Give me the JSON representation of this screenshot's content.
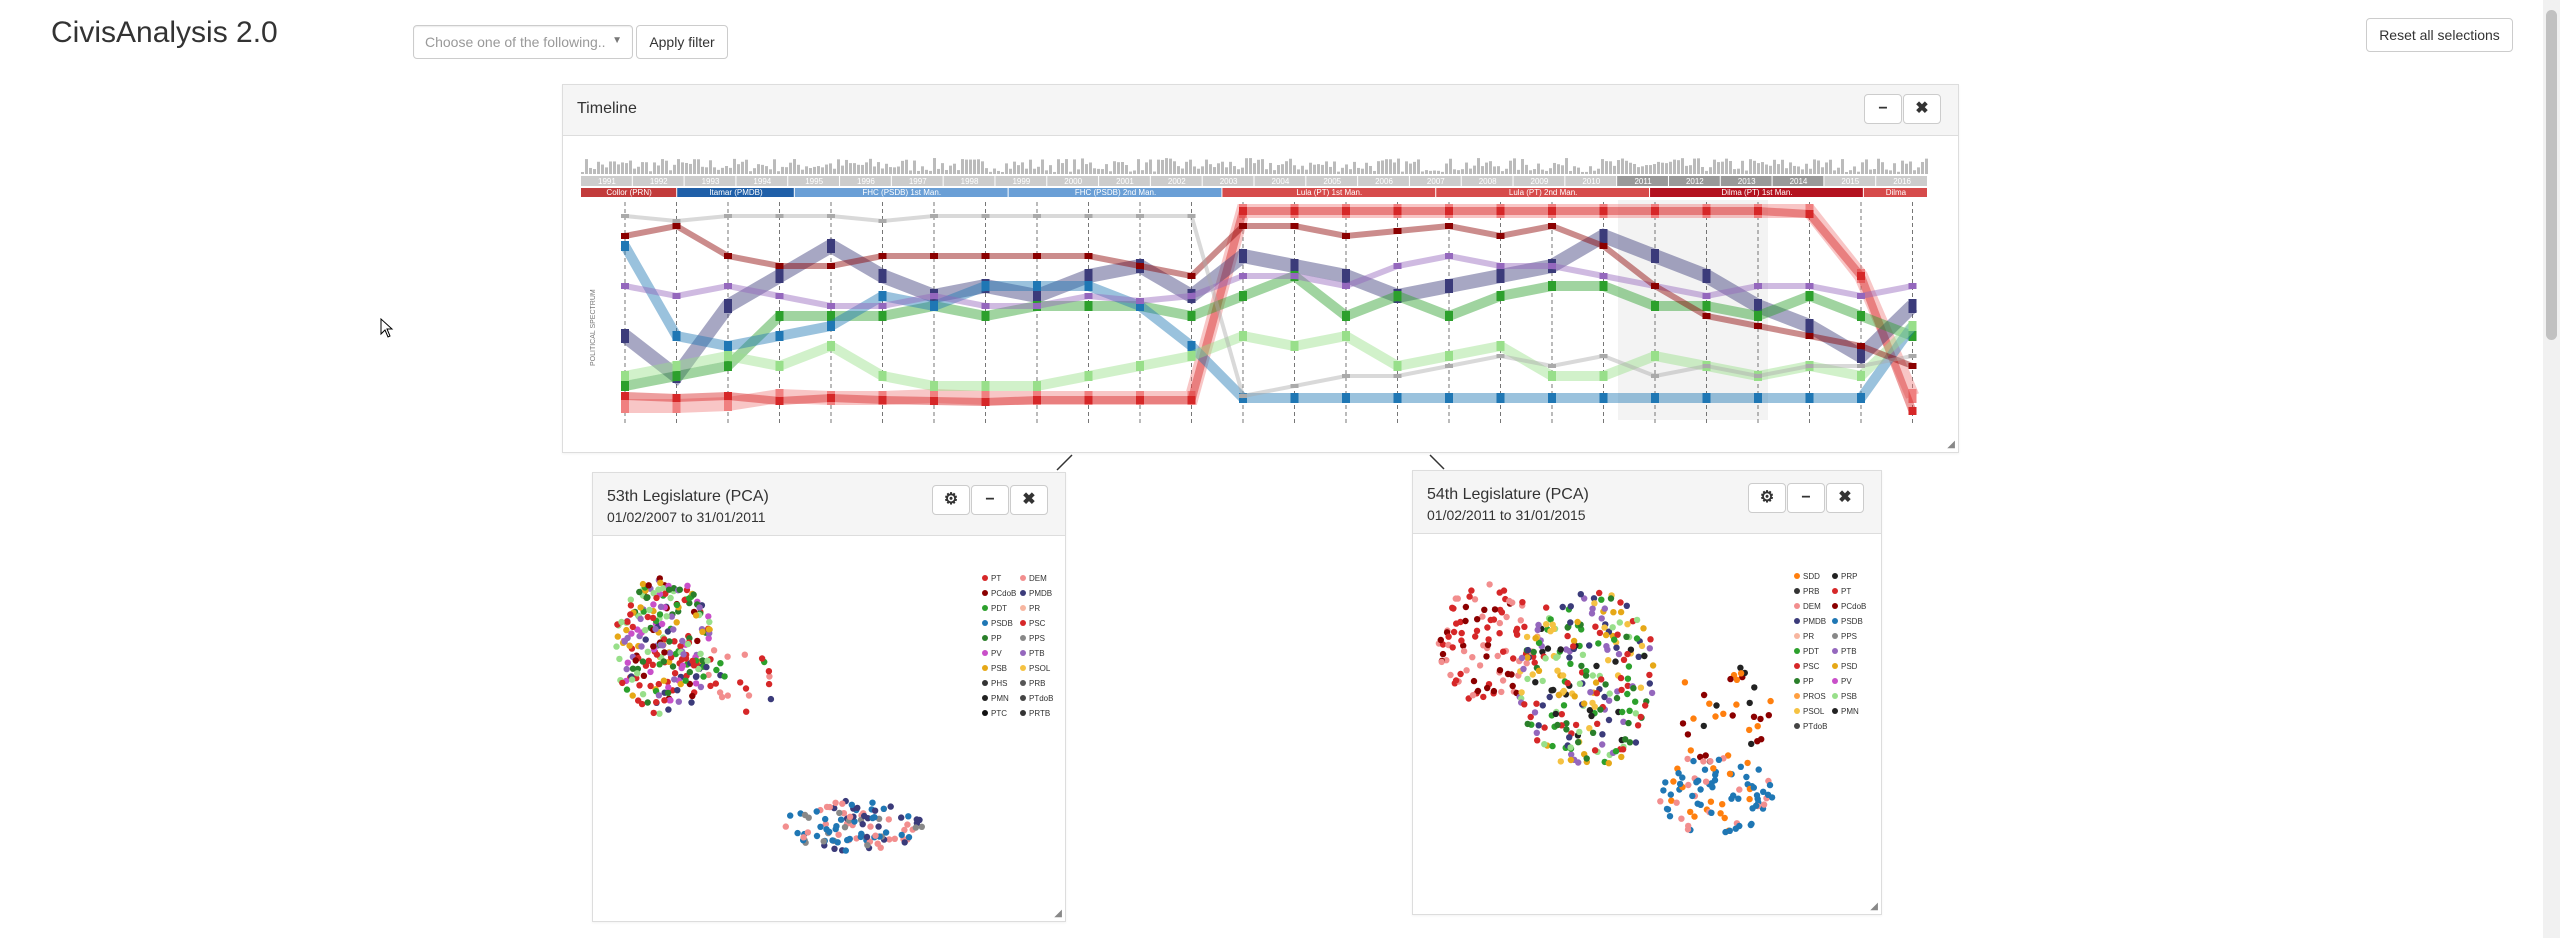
{
  "app": {
    "title": "CivisAnalysis 2.0"
  },
  "toolbar": {
    "filter_placeholder": "Choose one of the following..",
    "apply_label": "Apply filter",
    "reset_label": "Reset all selections"
  },
  "timeline": {
    "title": "Timeline",
    "years": [
      "1991",
      "1992",
      "1993",
      "1994",
      "1995",
      "1996",
      "1997",
      "1998",
      "1999",
      "2000",
      "2001",
      "2002",
      "2003",
      "2004",
      "2005",
      "2006",
      "2007",
      "2008",
      "2009",
      "2010",
      "2011",
      "2012",
      "2013",
      "2014",
      "2015",
      "2016"
    ],
    "presidents": [
      "Collor (PRN)",
      "Itamar (PMDB)",
      "FHC (PSDB) 1st Man.",
      "FHC (PSDB) 2nd Man.",
      "Lula (PT) 1st Man.",
      "Lula (PT) 2nd Man.",
      "Dilma (PT) 1st Man.",
      "Dilma"
    ],
    "axis_label": "POLITICAL SPECTRUM"
  },
  "panel53": {
    "title": "53th Legislature (PCA)",
    "dates": "01/02/2007 to 31/01/2011",
    "legend": [
      {
        "name": "PT",
        "color": "#d62728"
      },
      {
        "name": "DEM",
        "color": "#f28e8e"
      },
      {
        "name": "PCdoB",
        "color": "#8b0000"
      },
      {
        "name": "PMDB",
        "color": "#3b3b7a"
      },
      {
        "name": "PDT",
        "color": "#2ca02c"
      },
      {
        "name": "PR",
        "color": "#f7b6a0"
      },
      {
        "name": "PSDB",
        "color": "#1f77b4"
      },
      {
        "name": "PSC",
        "color": "#d62728"
      },
      {
        "name": "PP",
        "color": "#2a7f2a"
      },
      {
        "name": "PPS",
        "color": "#888888"
      },
      {
        "name": "PV",
        "color": "#c94fc9"
      },
      {
        "name": "PTB",
        "color": "#9467bd"
      },
      {
        "name": "PSB",
        "color": "#e6a817"
      },
      {
        "name": "PSOL",
        "color": "#f5c242"
      },
      {
        "name": "PHS",
        "color": "#333333"
      },
      {
        "name": "PRB",
        "color": "#555555"
      },
      {
        "name": "PMN",
        "color": "#222222"
      },
      {
        "name": "PTdoB",
        "color": "#444444"
      },
      {
        "name": "PTC",
        "color": "#111111"
      },
      {
        "name": "PRTB",
        "color": "#333333"
      }
    ]
  },
  "panel54": {
    "title": "54th Legislature (PCA)",
    "dates": "01/02/2011 to 31/01/2015",
    "legend": [
      {
        "name": "SDD",
        "color": "#ff7f0e"
      },
      {
        "name": "PRP",
        "color": "#222222"
      },
      {
        "name": "PRB",
        "color": "#333333"
      },
      {
        "name": "PT",
        "color": "#d62728"
      },
      {
        "name": "DEM",
        "color": "#f28e8e"
      },
      {
        "name": "PCdoB",
        "color": "#8b0000"
      },
      {
        "name": "PMDB",
        "color": "#3b3b7a"
      },
      {
        "name": "PSDB",
        "color": "#1f77b4"
      },
      {
        "name": "PR",
        "color": "#f7b6a0"
      },
      {
        "name": "PPS",
        "color": "#888888"
      },
      {
        "name": "PDT",
        "color": "#2ca02c"
      },
      {
        "name": "PTB",
        "color": "#9467bd"
      },
      {
        "name": "PSC",
        "color": "#d62728"
      },
      {
        "name": "PSD",
        "color": "#e6a817"
      },
      {
        "name": "PP",
        "color": "#2a7f2a"
      },
      {
        "name": "PV",
        "color": "#c94fc9"
      },
      {
        "name": "PROS",
        "color": "#ff9f40"
      },
      {
        "name": "PSB",
        "color": "#98df8a"
      },
      {
        "name": "PSOL",
        "color": "#f5c242"
      },
      {
        "name": "PMN",
        "color": "#222222"
      },
      {
        "name": "PTdoB",
        "color": "#444444"
      }
    ]
  },
  "icons": {
    "minimize": "minus-icon",
    "close": "close-icon",
    "settings": "gear-icon",
    "resize": "resize-icon"
  }
}
